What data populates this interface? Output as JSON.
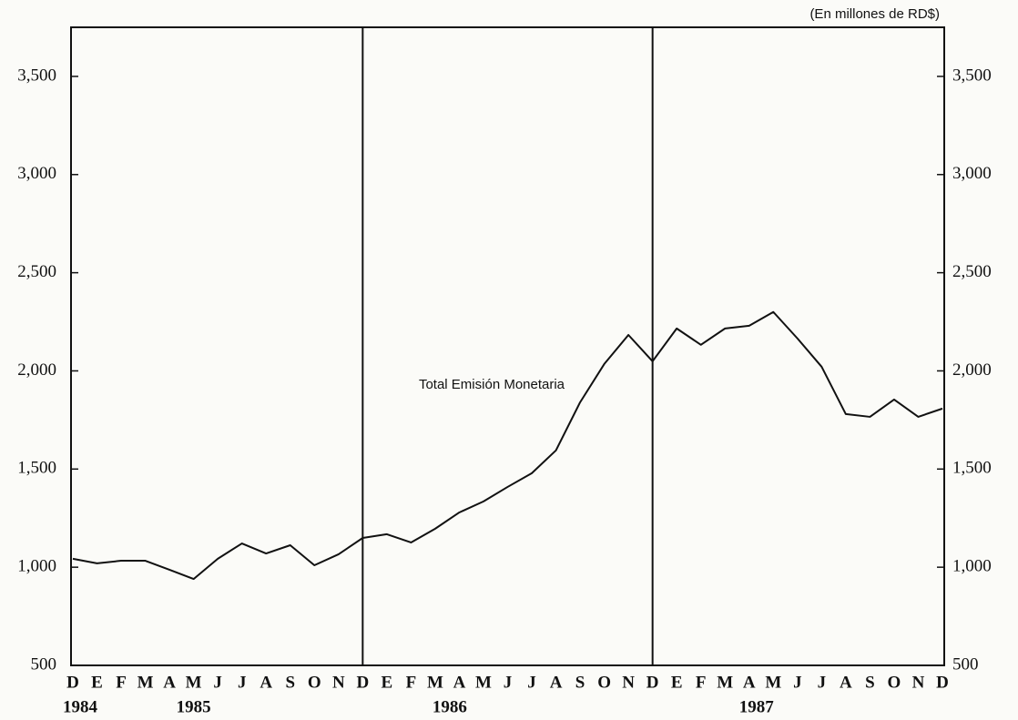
{
  "chart_data": {
    "type": "line",
    "unit_note": "(En millones de RD$)",
    "categories": [
      "D",
      "E",
      "F",
      "M",
      "A",
      "M",
      "J",
      "J",
      "A",
      "S",
      "O",
      "N",
      "D",
      "E",
      "F",
      "M",
      "A",
      "M",
      "J",
      "J",
      "A",
      "S",
      "O",
      "N",
      "D",
      "E",
      "F",
      "M",
      "A",
      "M",
      "J",
      "J",
      "A",
      "S",
      "O",
      "N",
      "D"
    ],
    "years": [
      "1984",
      "1985",
      "1986",
      "1987"
    ],
    "series": [
      {
        "name": "Total Emisión Monetaria",
        "color": "#111111",
        "values": [
          1043,
          1020,
          1033,
          1033,
          987,
          940,
          1043,
          1121,
          1070,
          1112,
          1010,
          1066,
          1149,
          1168,
          1126,
          1196,
          1279,
          1335,
          1409,
          1479,
          1595,
          1840,
          2035,
          2183,
          2049,
          2216,
          2133,
          2216,
          2230,
          2300,
          2165,
          2021,
          1780,
          1766,
          1854,
          1766,
          1808
        ]
      }
    ],
    "ylim": [
      500,
      3750
    ],
    "yticks": [
      500,
      {
        "value": 1000,
        "label": "1,000"
      },
      {
        "value": 1500,
        "label": "1,500"
      },
      {
        "value": 2000,
        "label": "2,000"
      },
      {
        "value": 2500,
        "label": "2,500"
      },
      {
        "value": 3000,
        "label": "3,000"
      },
      {
        "value": 3500,
        "label": "3,500"
      }
    ],
    "grid": false
  }
}
